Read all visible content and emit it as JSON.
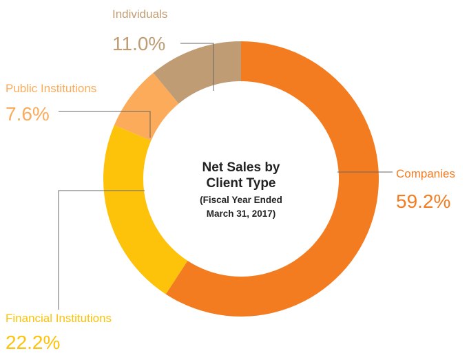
{
  "chart_data": {
    "type": "donut",
    "title": "Net Sales by Client Type",
    "subtitle": "(Fiscal Year Ended March 31, 2017)",
    "categories": [
      "Companies",
      "Financial Institutions",
      "Public Institutions",
      "Individuals"
    ],
    "values": [
      59.2,
      22.2,
      7.6,
      11.0
    ],
    "value_labels": [
      "59.2%",
      "22.2%",
      "7.6%",
      "11.0%"
    ],
    "colors": [
      "#f47c20",
      "#fdc20a",
      "#fbab5a",
      "#bf9c73"
    ]
  }
}
